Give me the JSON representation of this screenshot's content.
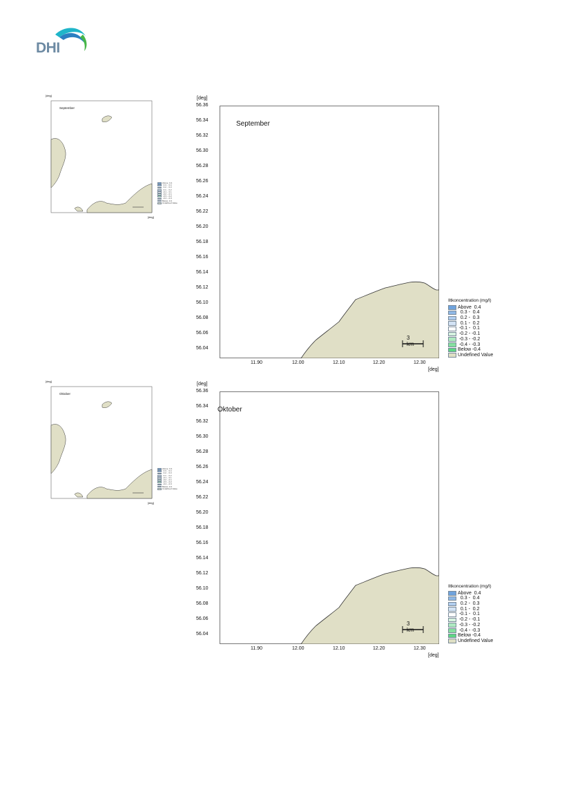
{
  "logo": {
    "text": "DHI"
  },
  "panels": [
    {
      "month": "September",
      "unit_x": "[deg]",
      "unit_y": "[deg]",
      "x_ticks": [
        "11.90",
        "12.00",
        "12.10",
        "12.20",
        "12.30"
      ],
      "y_ticks": [
        "56.36",
        "56.34",
        "56.32",
        "56.30",
        "56.28",
        "56.26",
        "56.24",
        "56.22",
        "56.20",
        "56.18",
        "56.16",
        "56.14",
        "56.12",
        "56.10",
        "56.08",
        "56.06",
        "56.04"
      ],
      "scale_bar": "3 km",
      "legend_title": "Iltkoncentration (mg/l)"
    },
    {
      "month": "Oktober",
      "unit_x": "[deg]",
      "unit_y": "[deg]",
      "x_ticks": [
        "11.90",
        "12.00",
        "12.10",
        "12.20",
        "12.30"
      ],
      "y_ticks": [
        "56.36",
        "56.34",
        "56.32",
        "56.30",
        "56.28",
        "56.26",
        "56.24",
        "56.22",
        "56.20",
        "56.18",
        "56.16",
        "56.14",
        "56.12",
        "56.10",
        "56.08",
        "56.06",
        "56.04"
      ],
      "scale_bar": "3 km",
      "legend_title": "Iltkoncentration (mg/l)"
    }
  ],
  "legend_items": [
    {
      "label": "Above  0.4",
      "color": "#6fa3dd"
    },
    {
      "label": "  0.3 -  0.4",
      "color": "#8fb8e6"
    },
    {
      "label": "  0.2 -  0.3",
      "color": "#b0cdee"
    },
    {
      "label": "  0.1 -  0.2",
      "color": "#d3e3f5"
    },
    {
      "label": " -0.1 -  0.1",
      "color": "#ffffff"
    },
    {
      "label": " -0.2 - -0.1",
      "color": "#d6f3df"
    },
    {
      "label": " -0.3 - -0.2",
      "color": "#aeeac0"
    },
    {
      "label": " -0.4 - -0.3",
      "color": "#86e0a0"
    },
    {
      "label": "Below -0.4",
      "color": "#5dd683"
    },
    {
      "label": "Undefined Value",
      "color": "#dedfc4"
    }
  ],
  "colors": {
    "land": "#e0dfc6",
    "coast": "#333333"
  }
}
